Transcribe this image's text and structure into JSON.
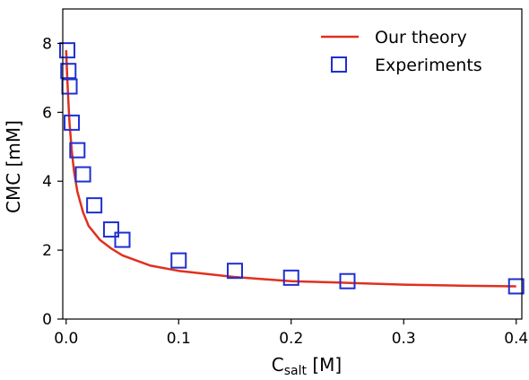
{
  "chart_data": {
    "type": "line",
    "xlabel_main": "C",
    "xlabel_sub": "salt",
    "xlabel_unit": " [M]",
    "ylabel": "CMC [mM]",
    "xlim": [
      -0.003,
      0.405
    ],
    "ylim": [
      0,
      9
    ],
    "xticks": [
      0.0,
      0.1,
      0.2,
      0.3,
      0.4
    ],
    "xtick_labels": [
      "0.0",
      "0.1",
      "0.2",
      "0.3",
      "0.4"
    ],
    "yticks": [
      0,
      2,
      4,
      6,
      8
    ],
    "ytick_labels": [
      "0",
      "2",
      "4",
      "6",
      "8"
    ],
    "grid": false,
    "legend_position": "top-right",
    "series": [
      {
        "name": "Our theory",
        "kind": "line",
        "color": "#e0301e",
        "x": [
          0.0,
          0.001,
          0.002,
          0.003,
          0.005,
          0.007,
          0.01,
          0.015,
          0.02,
          0.03,
          0.04,
          0.05,
          0.075,
          0.1,
          0.15,
          0.2,
          0.25,
          0.3,
          0.35,
          0.4
        ],
        "y": [
          7.8,
          7.0,
          6.3,
          5.7,
          4.9,
          4.3,
          3.7,
          3.1,
          2.7,
          2.3,
          2.05,
          1.85,
          1.55,
          1.4,
          1.22,
          1.1,
          1.05,
          1.0,
          0.97,
          0.95
        ]
      },
      {
        "name": "Experiments",
        "kind": "square-marker",
        "color": "#1f2fd1",
        "x": [
          0.001,
          0.002,
          0.003,
          0.005,
          0.01,
          0.015,
          0.025,
          0.04,
          0.05,
          0.1,
          0.15,
          0.2,
          0.25,
          0.4
        ],
        "y": [
          7.8,
          7.2,
          6.75,
          5.7,
          4.9,
          4.2,
          3.3,
          2.6,
          2.3,
          1.7,
          1.4,
          1.2,
          1.1,
          0.95
        ]
      }
    ]
  }
}
